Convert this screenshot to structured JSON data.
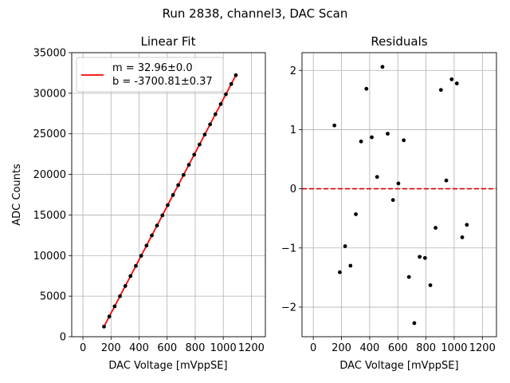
{
  "figure": {
    "suptitle": "Run 2838, channel3, DAC Scan"
  },
  "chart_data": [
    {
      "type": "scatter",
      "title": "Linear Fit",
      "xlabel": "DAC Voltage [mVppSE]",
      "ylabel": "ADC Counts",
      "xlim": [
        -80,
        1300
      ],
      "ylim": [
        0,
        35000
      ],
      "xticks": [
        0,
        200,
        400,
        600,
        800,
        1000,
        1200
      ],
      "yticks": [
        0,
        5000,
        10000,
        15000,
        20000,
        25000,
        30000,
        35000
      ],
      "grid": true,
      "legend": {
        "placement": "top-left",
        "entries": [
          "m = 32.96±0.0",
          "b = -3700.81±0.37"
        ]
      },
      "fit_line": {
        "color": "#ff0000",
        "x": [
          150,
          1090
        ],
        "slope": 32.96,
        "intercept": -3700.81
      },
      "points_color": "#000000",
      "x": [
        150,
        188,
        226,
        264,
        302,
        339,
        377,
        415,
        453,
        491,
        528,
        566,
        604,
        642,
        679,
        717,
        755,
        793,
        831,
        868,
        906,
        944,
        982,
        1019,
        1057,
        1090
      ]
    },
    {
      "type": "scatter",
      "title": "Residuals",
      "xlabel": "DAC Voltage [mVppSE]",
      "ylabel": "",
      "xlim": [
        -80,
        1300
      ],
      "ylim": [
        -2.5,
        2.3
      ],
      "xticks": [
        0,
        200,
        400,
        600,
        800,
        1000,
        1200
      ],
      "yticks": [
        -2,
        -1,
        0,
        1,
        2
      ],
      "ytick_labels": [
        "−2",
        "−1",
        "0",
        "1",
        "2"
      ],
      "grid": true,
      "zero_line": {
        "color": "#dd0000",
        "y": 0
      },
      "points_color": "#000000",
      "x": [
        150,
        188,
        226,
        264,
        302,
        339,
        377,
        415,
        453,
        491,
        528,
        566,
        604,
        642,
        679,
        717,
        755,
        793,
        831,
        868,
        906,
        944,
        982,
        1019,
        1057,
        1090
      ],
      "y": [
        1.07,
        -1.41,
        -0.97,
        -1.3,
        -0.43,
        0.8,
        1.69,
        0.87,
        0.2,
        2.06,
        0.93,
        -0.19,
        0.09,
        0.82,
        -1.49,
        -2.27,
        -1.15,
        -1.17,
        -1.63,
        -0.66,
        1.67,
        0.14,
        1.85,
        1.78,
        -0.82,
        -0.61
      ]
    }
  ]
}
